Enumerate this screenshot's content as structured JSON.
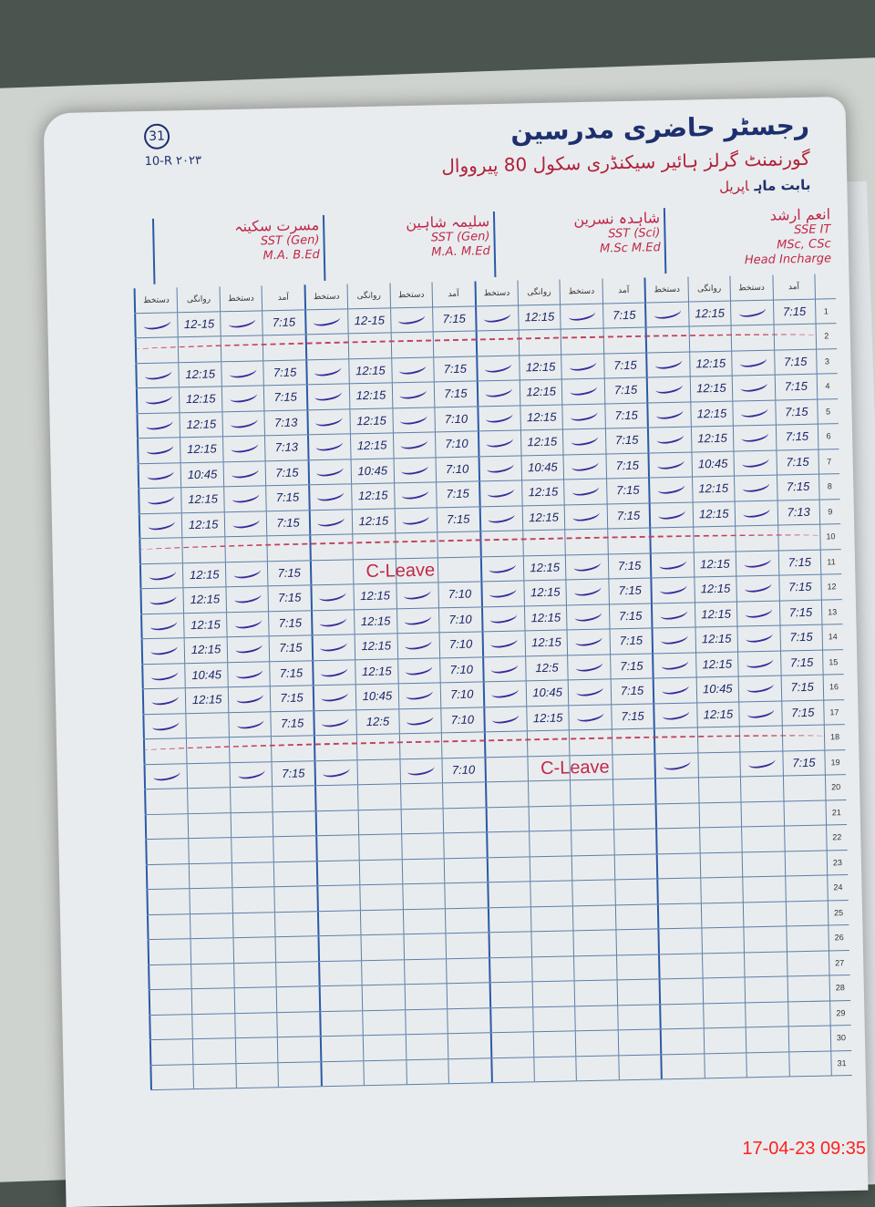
{
  "header": {
    "page_number": "31",
    "title": "رجسٹر حاضری مدرسین",
    "school": "گورنمنٹ گرلز ہائیر سیکنڈری سکول 80 پیرووال",
    "code": "10-R ۲۰۲۳",
    "month_label": "بابت ماہ",
    "month_value": "اپریل"
  },
  "column_headers": [
    "آمد",
    "دستخط",
    "روانگی",
    "دستخط"
  ],
  "teachers": [
    {
      "name": "انعم ارشد",
      "designation": "SSE IT",
      "degree": "MSc, CSc",
      "role": "Head Incharge"
    },
    {
      "name": "شاہدہ نسرین",
      "designation": "SST (Sci)",
      "degree": "M.Sc M.Ed"
    },
    {
      "name": "سلیمہ شاہین",
      "designation": "SST (Gen)",
      "degree": "M.A. M.Ed"
    },
    {
      "name": "مسرت سکینہ",
      "designation": "SST (Gen)",
      "degree": "M.A. B.Ed"
    }
  ],
  "rows": [
    {
      "day": "1",
      "t": [
        [
          "7:15",
          "12:15"
        ],
        [
          "7:15",
          "12:15"
        ],
        [
          "7:15",
          "12-15"
        ],
        [
          "7:15",
          "12-15"
        ]
      ]
    },
    {
      "day": "2",
      "holiday": true
    },
    {
      "day": "3",
      "t": [
        [
          "7:15",
          "12:15"
        ],
        [
          "7:15",
          "12:15"
        ],
        [
          "7:15",
          "12:15"
        ],
        [
          "7:15",
          "12:15"
        ]
      ]
    },
    {
      "day": "4",
      "t": [
        [
          "7:15",
          "12:15"
        ],
        [
          "7:15",
          "12:15"
        ],
        [
          "7:15",
          "12:15"
        ],
        [
          "7:15",
          "12:15"
        ]
      ]
    },
    {
      "day": "5",
      "t": [
        [
          "7:15",
          "12:15"
        ],
        [
          "7:15",
          "12:15"
        ],
        [
          "7:10",
          "12:15"
        ],
        [
          "7:13",
          "12:15"
        ]
      ]
    },
    {
      "day": "6",
      "t": [
        [
          "7:15",
          "12:15"
        ],
        [
          "7:15",
          "12:15"
        ],
        [
          "7:10",
          "12:15"
        ],
        [
          "7:13",
          "12:15"
        ]
      ]
    },
    {
      "day": "7",
      "t": [
        [
          "7:15",
          "10:45"
        ],
        [
          "7:15",
          "10:45"
        ],
        [
          "7:10",
          "10:45"
        ],
        [
          "7:15",
          "10:45"
        ]
      ]
    },
    {
      "day": "8",
      "t": [
        [
          "7:15",
          "12:15"
        ],
        [
          "7:15",
          "12:15"
        ],
        [
          "7:15",
          "12:15"
        ],
        [
          "7:15",
          "12:15"
        ]
      ]
    },
    {
      "day": "9",
      "t": [
        [
          "7:13",
          "12:15"
        ],
        [
          "7:15",
          "12:15"
        ],
        [
          "7:15",
          "12:15"
        ],
        [
          "7:15",
          "12:15"
        ]
      ]
    },
    {
      "day": "10",
      "holiday": true
    },
    {
      "day": "11",
      "t": [
        [
          "7:15",
          "12:15"
        ],
        [
          "7:15",
          "12:15"
        ],
        null,
        [
          "7:15",
          "12:15"
        ]
      ],
      "leave": 2
    },
    {
      "day": "12",
      "t": [
        [
          "7:15",
          "12:15"
        ],
        [
          "7:15",
          "12:15"
        ],
        [
          "7:10",
          "12:15"
        ],
        [
          "7:15",
          "12:15"
        ]
      ]
    },
    {
      "day": "13",
      "t": [
        [
          "7:15",
          "12:15"
        ],
        [
          "7:15",
          "12:15"
        ],
        [
          "7:10",
          "12:15"
        ],
        [
          "7:15",
          "12:15"
        ]
      ]
    },
    {
      "day": "14",
      "t": [
        [
          "7:15",
          "12:15"
        ],
        [
          "7:15",
          "12:15"
        ],
        [
          "7:10",
          "12:15"
        ],
        [
          "7:15",
          "12:15"
        ]
      ]
    },
    {
      "day": "15",
      "t": [
        [
          "7:15",
          "12:15"
        ],
        [
          "7:15",
          "12:5"
        ],
        [
          "7:10",
          "12:15"
        ],
        [
          "7:15",
          "10:45"
        ]
      ]
    },
    {
      "day": "16",
      "t": [
        [
          "7:15",
          "10:45"
        ],
        [
          "7:15",
          "10:45"
        ],
        [
          "7:10",
          "10:45"
        ],
        [
          "7:15",
          "12:15"
        ]
      ]
    },
    {
      "day": "17",
      "t": [
        [
          "7:15",
          "12:15"
        ],
        [
          "7:15",
          "12:15"
        ],
        [
          "7:10",
          "12:5"
        ],
        [
          "7:15",
          ""
        ]
      ]
    },
    {
      "day": "18",
      "holiday": true
    },
    {
      "day": "19",
      "t": [
        [
          "7:15",
          ""
        ],
        null,
        [
          "7:10",
          ""
        ],
        [
          "7:15",
          ""
        ]
      ],
      "leave": 1
    },
    {
      "day": "20"
    },
    {
      "day": "21"
    },
    {
      "day": "22"
    },
    {
      "day": "23"
    },
    {
      "day": "24"
    },
    {
      "day": "25"
    },
    {
      "day": "26"
    },
    {
      "day": "27"
    },
    {
      "day": "28"
    },
    {
      "day": "29"
    },
    {
      "day": "30"
    },
    {
      "day": "31"
    }
  ],
  "leave_label": "C-Leave",
  "timestamp": "17-04-23  09:35"
}
